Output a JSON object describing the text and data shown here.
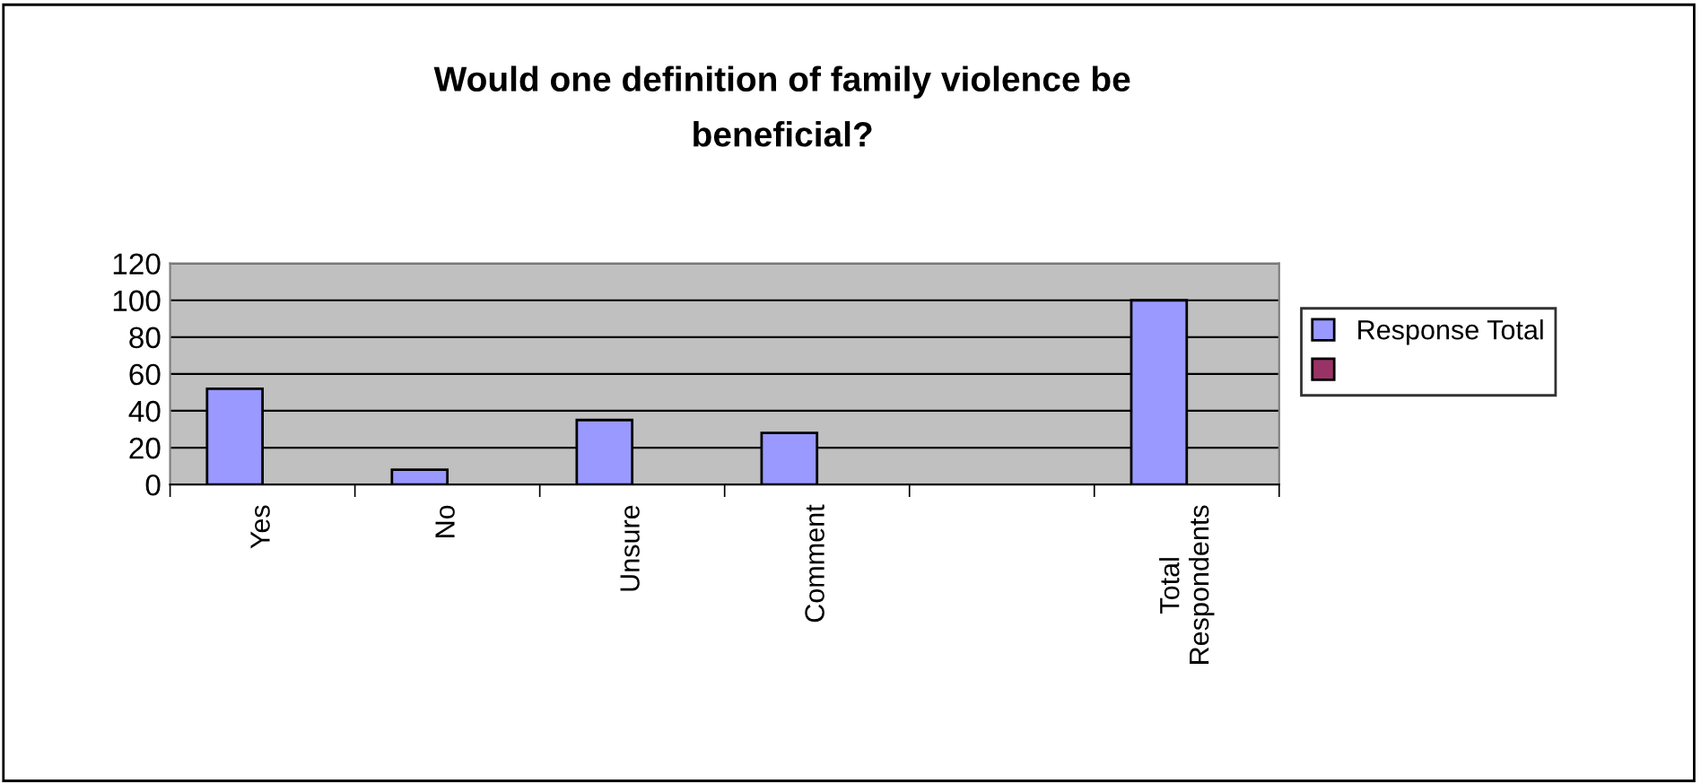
{
  "chart_data": {
    "type": "bar",
    "title": "Would one definition of family violence be\nbeneficial?",
    "categories": [
      "Yes",
      "No",
      "Unsure",
      "Comment",
      null,
      "Total\nRespondents"
    ],
    "series": [
      {
        "name": "Response Total",
        "color": "#9999ff",
        "values": [
          52,
          8,
          35,
          28,
          null,
          100
        ]
      },
      {
        "color": "#993366",
        "values": [
          null,
          null,
          null,
          null,
          null,
          null
        ]
      }
    ],
    "ylim": [
      0,
      120
    ],
    "yticks": [
      0,
      20,
      40,
      60,
      80,
      100,
      120
    ],
    "grid": "y",
    "legend": "right"
  }
}
